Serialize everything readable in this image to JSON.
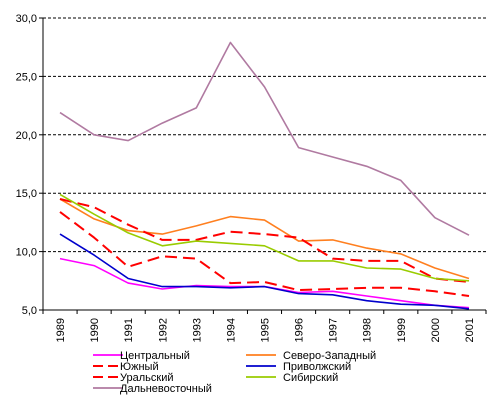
{
  "chart_data": {
    "type": "line",
    "title": "",
    "xlabel": "",
    "ylabel": "",
    "x": [
      "1989",
      "1990",
      "1991",
      "1992",
      "1993",
      "1994",
      "1995",
      "1996",
      "1997",
      "1998",
      "1999",
      "2000",
      "2001"
    ],
    "ylim": [
      5,
      30
    ],
    "yticks": [
      "5,0",
      "10,0",
      "15,0",
      "20,0",
      "25,0",
      "30,0"
    ],
    "grid": "horizontal-dashed",
    "legend": "bottom",
    "series": [
      {
        "name": "Центральный",
        "color": "#ff00ff",
        "dash": "solid",
        "values": [
          9.4,
          8.8,
          7.3,
          6.8,
          7.1,
          7.0,
          7.0,
          6.5,
          6.6,
          6.2,
          5.8,
          5.4,
          5.2
        ]
      },
      {
        "name": "Северо-Западный",
        "color": "#ff7f1f",
        "dash": "solid",
        "values": [
          14.5,
          12.8,
          11.8,
          11.5,
          12.2,
          13.0,
          12.7,
          10.9,
          11.0,
          10.3,
          9.8,
          8.6,
          7.7
        ]
      },
      {
        "name": "Южный",
        "color": "#ff0000",
        "dash": "dashed",
        "values": [
          14.5,
          13.8,
          12.3,
          11.0,
          11.0,
          11.7,
          11.5,
          11.2,
          9.4,
          9.2,
          9.2,
          7.7,
          7.4
        ]
      },
      {
        "name": "Приволжский",
        "color": "#0000cc",
        "dash": "solid",
        "values": [
          11.5,
          9.7,
          7.7,
          7.0,
          7.0,
          6.9,
          7.0,
          6.4,
          6.3,
          5.8,
          5.5,
          5.4,
          5.1
        ]
      },
      {
        "name": "Уральский",
        "color": "#ff0000",
        "dash": "dashed",
        "values": [
          13.4,
          11.2,
          8.7,
          9.6,
          9.4,
          7.3,
          7.4,
          6.7,
          6.8,
          6.9,
          6.9,
          6.6,
          6.2
        ]
      },
      {
        "name": "Сибирский",
        "color": "#99cc00",
        "dash": "solid",
        "values": [
          14.9,
          13.2,
          11.6,
          10.5,
          10.9,
          10.7,
          10.5,
          9.2,
          9.2,
          8.6,
          8.5,
          7.7,
          7.5
        ]
      },
      {
        "name": "Дальневосточный",
        "color": "#b07aa1",
        "dash": "solid",
        "values": [
          21.9,
          20.0,
          19.5,
          21.0,
          22.3,
          27.9,
          24.1,
          18.9,
          18.1,
          17.3,
          16.1,
          12.9,
          11.4
        ]
      }
    ]
  }
}
